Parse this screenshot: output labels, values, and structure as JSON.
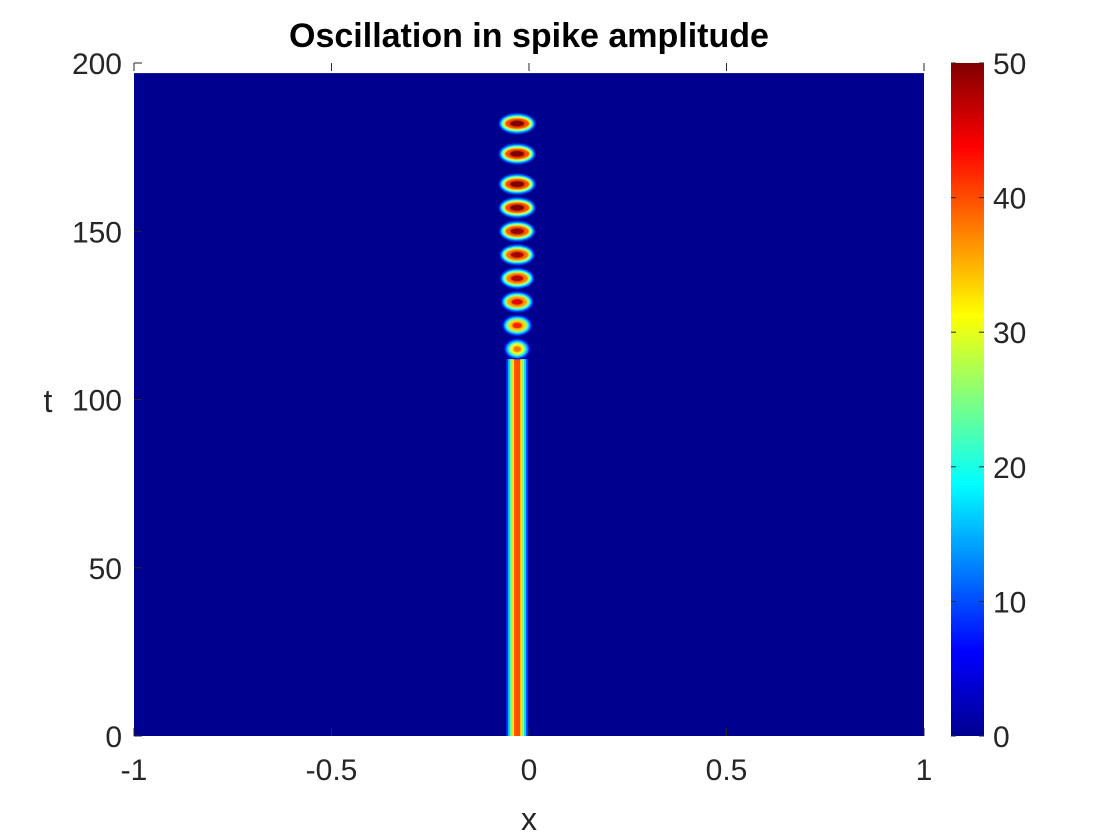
{
  "chart_data": {
    "type": "heatmap",
    "title": "Oscillation in spike amplitude",
    "xlabel": "x",
    "ylabel": "t",
    "xlim": [
      -1,
      1
    ],
    "ylim": [
      0,
      200
    ],
    "x_ticks": [
      "-1",
      "-0.5",
      "0",
      "0.5",
      "1"
    ],
    "x_tick_values": [
      -1,
      -0.5,
      0,
      0.5,
      1
    ],
    "y_ticks": [
      "0",
      "50",
      "100",
      "150",
      "200"
    ],
    "y_tick_values": [
      0,
      50,
      100,
      150,
      200
    ],
    "colorbar": {
      "colormap": "jet",
      "range": [
        0,
        50
      ],
      "ticks": [
        "0",
        "10",
        "20",
        "30",
        "40",
        "50"
      ],
      "tick_values": [
        0,
        10,
        20,
        30,
        40,
        50
      ]
    },
    "background_value": 0,
    "data_t_max": 197,
    "spike": {
      "x_center": -0.03,
      "steady_band": {
        "t_start": 0,
        "t_end": 112,
        "peak_value": 40
      },
      "oscillating_pulses": [
        {
          "t": 115,
          "peak_value": 38
        },
        {
          "t": 122,
          "peak_value": 42
        },
        {
          "t": 129,
          "peak_value": 45
        },
        {
          "t": 136,
          "peak_value": 47
        },
        {
          "t": 143,
          "peak_value": 48
        },
        {
          "t": 150,
          "peak_value": 49
        },
        {
          "t": 157,
          "peak_value": 50
        },
        {
          "t": 164,
          "peak_value": 50
        },
        {
          "t": 173,
          "peak_value": 50
        },
        {
          "t": 182,
          "peak_value": 50
        }
      ]
    }
  }
}
